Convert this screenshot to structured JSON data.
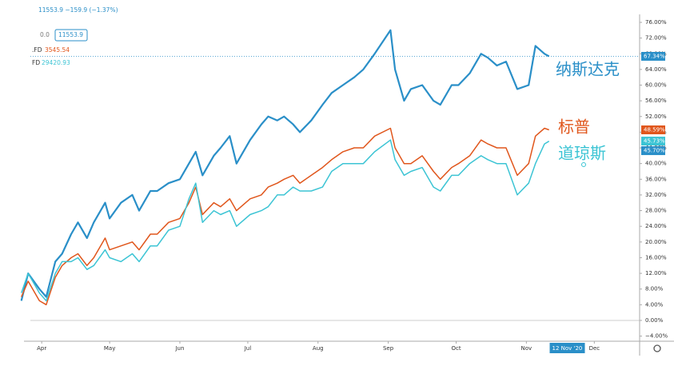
{
  "chart_data": {
    "type": "line",
    "legend_texts": [
      {
        "text": "11553.9 −159.9 (−1.37%)",
        "color": "#2a8fc8"
      },
      {
        "text": "0.0",
        "color": "#777777"
      },
      {
        "text": "11553.9",
        "color": "#2a8fc8"
      },
      {
        "text": ".FD",
        "color": "#333333"
      },
      {
        "text": "3545.54",
        "color": "#e0561c"
      },
      {
        "text": "FD",
        "color": "#333333"
      },
      {
        "text": "29420.93",
        "color": "#3cc4d4"
      }
    ],
    "x": [
      "2020-03-23",
      "2020-03-26",
      "2020-03-31",
      "2020-04-03",
      "2020-04-07",
      "2020-04-10",
      "2020-04-14",
      "2020-04-17",
      "2020-04-21",
      "2020-04-24",
      "2020-04-29",
      "2020-05-01",
      "2020-05-06",
      "2020-05-11",
      "2020-05-14",
      "2020-05-19",
      "2020-05-22",
      "2020-05-27",
      "2020-06-01",
      "2020-06-05",
      "2020-06-08",
      "2020-06-11",
      "2020-06-16",
      "2020-06-19",
      "2020-06-23",
      "2020-06-26",
      "2020-07-02",
      "2020-07-07",
      "2020-07-10",
      "2020-07-14",
      "2020-07-17",
      "2020-07-21",
      "2020-07-24",
      "2020-07-29",
      "2020-08-03",
      "2020-08-07",
      "2020-08-12",
      "2020-08-17",
      "2020-08-21",
      "2020-08-26",
      "2020-09-02",
      "2020-09-04",
      "2020-09-08",
      "2020-09-11",
      "2020-09-16",
      "2020-09-21",
      "2020-09-24",
      "2020-09-29",
      "2020-10-02",
      "2020-10-07",
      "2020-10-12",
      "2020-10-15",
      "2020-10-19",
      "2020-10-23",
      "2020-10-28",
      "2020-11-02",
      "2020-11-05",
      "2020-11-09",
      "2020-11-11"
    ],
    "series": [
      {
        "name": "纳斯达克",
        "color": "#2a8fc8",
        "values": [
          5,
          12,
          8,
          6,
          15,
          17,
          22,
          25,
          21,
          25,
          30,
          26,
          30,
          32,
          28,
          33,
          33,
          35,
          36,
          40,
          43,
          37,
          42,
          44,
          47,
          40,
          46,
          50,
          52,
          51,
          52,
          50,
          48,
          51,
          55,
          58,
          60,
          62,
          64,
          68,
          74,
          64,
          56,
          59,
          60,
          56,
          55,
          60,
          60,
          63,
          68,
          67,
          65,
          66,
          59,
          60,
          70,
          68,
          67.34
        ]
      },
      {
        "name": "标普",
        "color": "#e0561c",
        "values": [
          6,
          10,
          5,
          4,
          11,
          14,
          16,
          17,
          14,
          16,
          21,
          18,
          19,
          20,
          18,
          22,
          22,
          25,
          26,
          30,
          34,
          27,
          30,
          29,
          31,
          28,
          31,
          32,
          34,
          35,
          36,
          37,
          35,
          37,
          39,
          41,
          43,
          44,
          44,
          47,
          49,
          44,
          40,
          40,
          42,
          38,
          36,
          39,
          40,
          42,
          46,
          45,
          44,
          44,
          37,
          40,
          47,
          49,
          48.59
        ]
      },
      {
        "name": "道琼斯",
        "color": "#3cc4d4",
        "values": [
          7,
          12,
          7,
          5,
          12,
          15,
          15,
          16,
          13,
          14,
          18,
          16,
          15,
          17,
          15,
          19,
          19,
          23,
          24,
          31,
          35,
          25,
          28,
          27,
          28,
          24,
          27,
          28,
          29,
          32,
          32,
          34,
          33,
          33,
          34,
          38,
          40,
          40,
          40,
          43,
          46,
          41,
          37,
          38,
          39,
          34,
          33,
          37,
          37,
          40,
          42,
          41,
          40,
          40,
          32,
          35,
          40,
          45,
          45.7
        ]
      }
    ],
    "price_labels": [
      {
        "value": 67.34,
        "label": "67.34%",
        "color": "#2a8fc8"
      },
      {
        "value": 48.59,
        "label": "48.59%",
        "color": "#e0561c"
      },
      {
        "value": 45.73,
        "label": "45.73%",
        "color": "#3cc4d4"
      },
      {
        "value": 45.7,
        "label": "45.70%",
        "color": "#2a8fc8"
      }
    ],
    "xlim": [
      "2020-03-27",
      "2020-12-21"
    ],
    "xticks": [
      {
        "value": "2020-04-01",
        "label": "Apr"
      },
      {
        "value": "2020-05-01",
        "label": "May"
      },
      {
        "value": "2020-06-01",
        "label": "Jun"
      },
      {
        "value": "2020-07-01",
        "label": "Jul"
      },
      {
        "value": "2020-08-01",
        "label": "Aug"
      },
      {
        "value": "2020-09-01",
        "label": "Sep"
      },
      {
        "value": "2020-10-01",
        "label": "Oct"
      },
      {
        "value": "2020-11-01",
        "label": "Nov"
      },
      {
        "value": "2020-12-01",
        "label": "Dec"
      }
    ],
    "crosshair_label": {
      "value": "2020-11-12",
      "label": "12 Nov '20"
    },
    "ylim": [
      -4,
      76
    ],
    "yticks": [
      {
        "value": -4,
        "label": "−4.00%"
      },
      {
        "value": 0,
        "label": "0.00%"
      },
      {
        "value": 4,
        "label": "4.00%"
      },
      {
        "value": 8,
        "label": "8.00%"
      },
      {
        "value": 12,
        "label": "12.00%"
      },
      {
        "value": 16,
        "label": "16.00%"
      },
      {
        "value": 20,
        "label": "20.00%"
      },
      {
        "value": 24,
        "label": "24.00%"
      },
      {
        "value": 28,
        "label": "28.00%"
      },
      {
        "value": 32,
        "label": "32.00%"
      },
      {
        "value": 36,
        "label": "36.00%"
      },
      {
        "value": 40,
        "label": "40.00%"
      },
      {
        "value": 44,
        "label": "44.00%"
      },
      {
        "value": 48,
        "label": "48.00%"
      },
      {
        "value": 52,
        "label": "52.00%"
      },
      {
        "value": 56,
        "label": "56.00%"
      },
      {
        "value": 60,
        "label": "60.00%"
      },
      {
        "value": 64,
        "label": "64.00%"
      },
      {
        "value": 68,
        "label": "68.00%"
      },
      {
        "value": 72,
        "label": "72.00%"
      },
      {
        "value": 76,
        "label": "76.00%"
      }
    ]
  }
}
